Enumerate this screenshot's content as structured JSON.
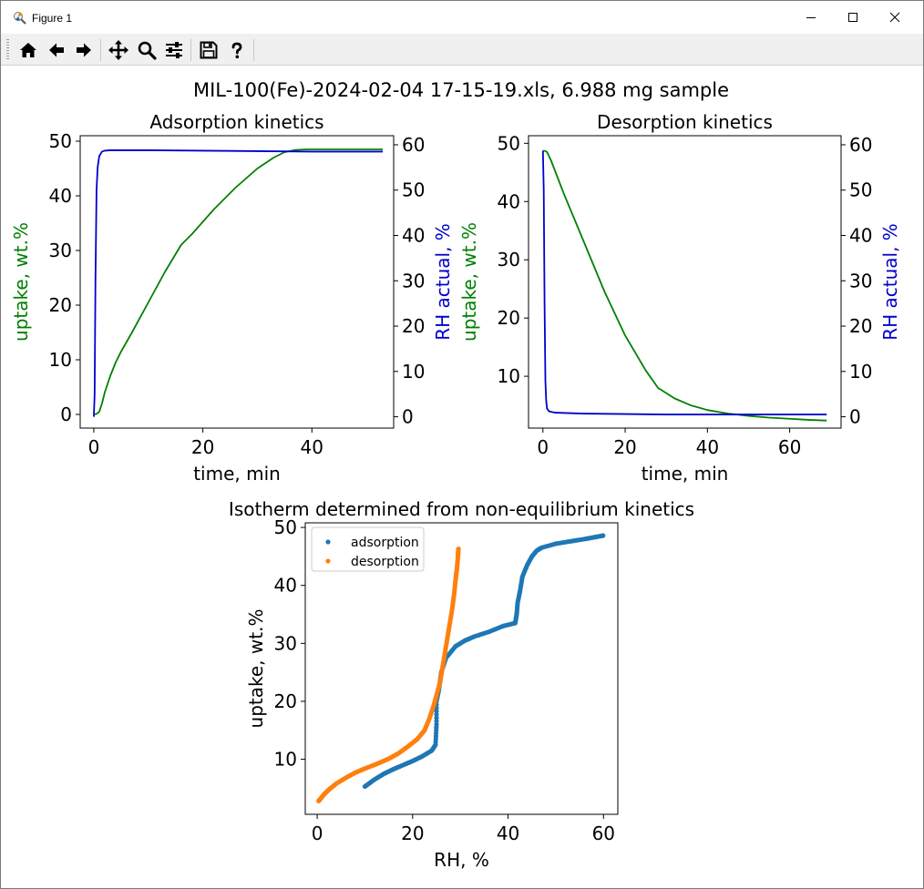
{
  "window": {
    "title": "Figure 1"
  },
  "toolbar": {
    "items": [
      {
        "name": "home-icon"
      },
      {
        "name": "back-arrow-icon"
      },
      {
        "name": "forward-arrow-icon"
      },
      {
        "name": "pan-icon"
      },
      {
        "name": "zoom-icon"
      },
      {
        "name": "configure-subplots-icon"
      },
      {
        "name": "save-icon"
      },
      {
        "name": "help-icon"
      }
    ]
  },
  "figure": {
    "suptitle": "MIL-100(Fe)-2024-02-04 17-15-19.xls, 6.988 mg sample"
  },
  "colors": {
    "green": "#008000",
    "blue": "#0000cd",
    "orange": "#ff7f0e",
    "tab_blue": "#1f77b4"
  },
  "chart_data": [
    {
      "id": "adsorption",
      "type": "line",
      "title": "Adsorption kinetics",
      "xlabel": "time, min",
      "ylabel": "uptake, wt.%",
      "ylabel2": "RH actual, %",
      "xlim": [
        -2.5,
        55
      ],
      "ylim": [
        -2.5,
        51
      ],
      "y2lim": [
        -2.5,
        62
      ],
      "xticks": [
        0,
        20,
        40
      ],
      "yticks": [
        0,
        10,
        20,
        30,
        40,
        50
      ],
      "y2ticks": [
        0,
        10,
        20,
        30,
        40,
        50,
        60
      ],
      "series": [
        {
          "axis": "left",
          "color": "green",
          "x": [
            0,
            0.5,
            1,
            1.5,
            2,
            3,
            4,
            5,
            7,
            10,
            13,
            16,
            18,
            22,
            26,
            30,
            33,
            35,
            37,
            39,
            41,
            45,
            50,
            53
          ],
          "y": [
            0,
            0.1,
            0.5,
            2,
            4,
            7,
            9.5,
            11.5,
            15,
            20.5,
            26,
            31,
            33,
            37.5,
            41.5,
            45,
            47,
            48,
            48.4,
            48.5,
            48.5,
            48.5,
            48.5,
            48.5
          ]
        },
        {
          "axis": "right",
          "color": "blue",
          "x": [
            0,
            0.15,
            0.3,
            0.5,
            0.7,
            1,
            1.5,
            2,
            3,
            5,
            10,
            20,
            30,
            40,
            50,
            53
          ],
          "y": [
            0,
            5,
            30,
            50,
            55,
            57.5,
            58.5,
            58.7,
            58.8,
            58.8,
            58.8,
            58.7,
            58.6,
            58.5,
            58.5,
            58.5
          ]
        }
      ]
    },
    {
      "id": "desorption",
      "type": "line",
      "title": "Desorption kinetics",
      "xlabel": "time, min",
      "ylabel": "uptake, wt.%",
      "ylabel2": "RH actual, %",
      "xlim": [
        -3.5,
        72.5
      ],
      "ylim": [
        1.1,
        51.3
      ],
      "y2lim": [
        -2.5,
        62
      ],
      "xticks": [
        0,
        20,
        40,
        60
      ],
      "yticks": [
        10,
        20,
        30,
        40,
        50
      ],
      "y2ticks": [
        0,
        10,
        20,
        30,
        40,
        50,
        60
      ],
      "series": [
        {
          "axis": "left",
          "color": "green",
          "x": [
            0,
            0.5,
            1,
            2,
            5,
            10,
            15,
            20,
            25,
            28,
            32,
            36,
            40,
            45,
            50,
            55,
            60,
            65,
            69
          ],
          "y": [
            48.7,
            48.7,
            48.5,
            47,
            41.5,
            33,
            24.5,
            17,
            11,
            8,
            6.2,
            5,
            4.2,
            3.6,
            3.2,
            2.9,
            2.7,
            2.5,
            2.4
          ]
        },
        {
          "axis": "right",
          "color": "blue",
          "x": [
            0,
            0.2,
            0.4,
            0.6,
            0.8,
            1,
            1.5,
            3,
            10,
            20,
            30,
            40,
            50,
            60,
            69
          ],
          "y": [
            58.7,
            50,
            25,
            8,
            3.5,
            1.8,
            1.2,
            0.9,
            0.7,
            0.6,
            0.5,
            0.5,
            0.5,
            0.5,
            0.5
          ]
        }
      ]
    },
    {
      "id": "isotherm",
      "type": "scatter",
      "title": "Isotherm determined from non-equilibrium kinetics",
      "xlabel": "RH, %",
      "ylabel": "uptake, wt.%",
      "xlim": [
        -2.5,
        63
      ],
      "ylim": [
        0.5,
        50.8
      ],
      "xticks": [
        0,
        20,
        40,
        60
      ],
      "yticks": [
        10,
        20,
        30,
        40,
        50
      ],
      "legend": {
        "position": "upper-left",
        "entries": [
          "adsorption",
          "desorption"
        ]
      },
      "series": [
        {
          "name": "adsorption",
          "color": "tab_blue",
          "x": [
            10,
            12,
            14,
            16,
            18,
            20,
            22,
            24,
            24.8,
            25,
            25,
            25.5,
            26,
            27,
            29,
            31,
            33,
            36,
            39,
            41.5,
            41.8,
            42,
            42.5,
            43,
            44,
            45,
            46,
            47,
            50,
            53,
            56,
            58,
            59.9
          ],
          "y": [
            5.3,
            6.5,
            7.5,
            8.3,
            9,
            9.7,
            10.5,
            11.5,
            12.5,
            16,
            20,
            22,
            25,
            27.5,
            29.5,
            30.5,
            31.2,
            32,
            33,
            33.5,
            35,
            37,
            39,
            41.5,
            43.5,
            45,
            46,
            46.5,
            47.2,
            47.6,
            48,
            48.3,
            48.6
          ]
        },
        {
          "name": "desorption",
          "color": "orange",
          "x": [
            0.3,
            0.7,
            1.5,
            2.5,
            4,
            6,
            8,
            10,
            12.5,
            15,
            17,
            19,
            21,
            22.5,
            23.5,
            24.5,
            25,
            25.8,
            26.3,
            26.8,
            27.3,
            27.8,
            28.3,
            28.7,
            29,
            29.3,
            29.5,
            29.6
          ],
          "y": [
            2.8,
            3.2,
            4,
            4.8,
            5.8,
            6.8,
            7.7,
            8.4,
            9.2,
            10.1,
            11,
            12.2,
            13.5,
            15,
            17,
            19.5,
            21,
            23.5,
            26,
            28.5,
            31,
            33.5,
            36,
            38.5,
            41,
            43,
            45,
            46.3
          ]
        }
      ]
    }
  ]
}
